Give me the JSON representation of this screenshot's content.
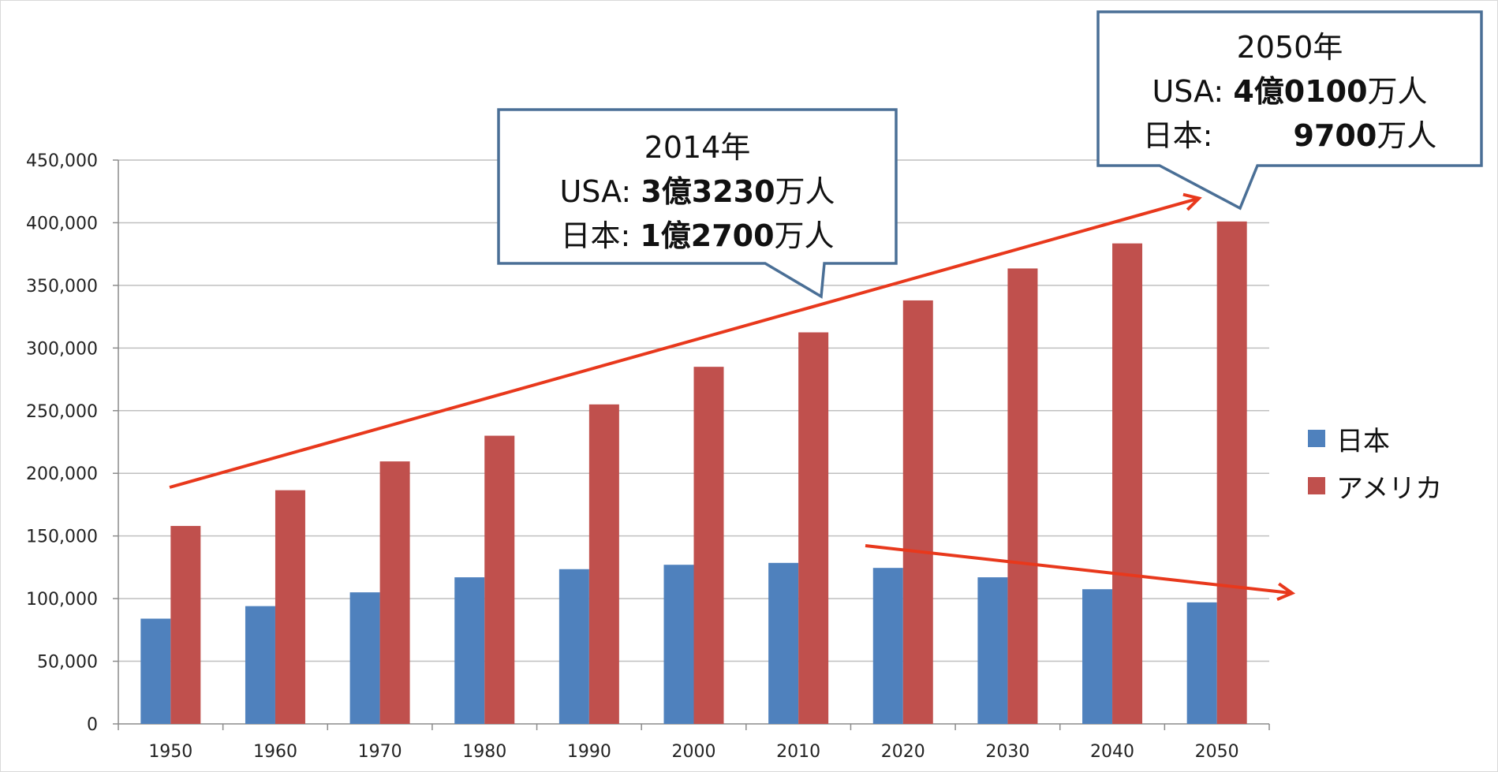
{
  "chart_data": {
    "type": "bar",
    "categories": [
      "1950",
      "1960",
      "1970",
      "1980",
      "1990",
      "2000",
      "2010",
      "2020",
      "2030",
      "2040",
      "2050"
    ],
    "series": [
      {
        "name": "日本",
        "color": "#4f81bd",
        "values": [
          84000,
          94000,
          105000,
          117000,
          123500,
          127000,
          128500,
          124500,
          117000,
          107500,
          97000
        ]
      },
      {
        "name": "アメリカ",
        "color": "#c0504d",
        "values": [
          158000,
          186500,
          209500,
          230000,
          255000,
          285000,
          312500,
          338000,
          363500,
          383500,
          401000
        ]
      }
    ],
    "ylim": [
      0,
      450000
    ],
    "yticks": [
      "0",
      "50,000",
      "100,000",
      "150,000",
      "200,000",
      "250,000",
      "300,000",
      "350,000",
      "400,000",
      "450,000"
    ],
    "grid": true,
    "legend_position": "right"
  },
  "callouts": {
    "y2014": {
      "year": "2014年",
      "usa_label": "USA: ",
      "usa_oku": "3億",
      "usa_man": "3230",
      "usa_unit": "万人",
      "jp_label": "日本: ",
      "jp_oku": "1億",
      "jp_man": "2700",
      "jp_unit": "万人"
    },
    "y2050": {
      "year": "2050年",
      "usa_label": "USA: ",
      "usa_oku": "4億",
      "usa_man": "0100",
      "usa_unit": "万人",
      "jp_label": "日本: ",
      "jp_man": "9700",
      "jp_unit": "万人"
    }
  },
  "colors": {
    "callout_border": "#4a6f96",
    "trend_arrow": "#e8381c",
    "gridline": "#bfbfbf"
  }
}
